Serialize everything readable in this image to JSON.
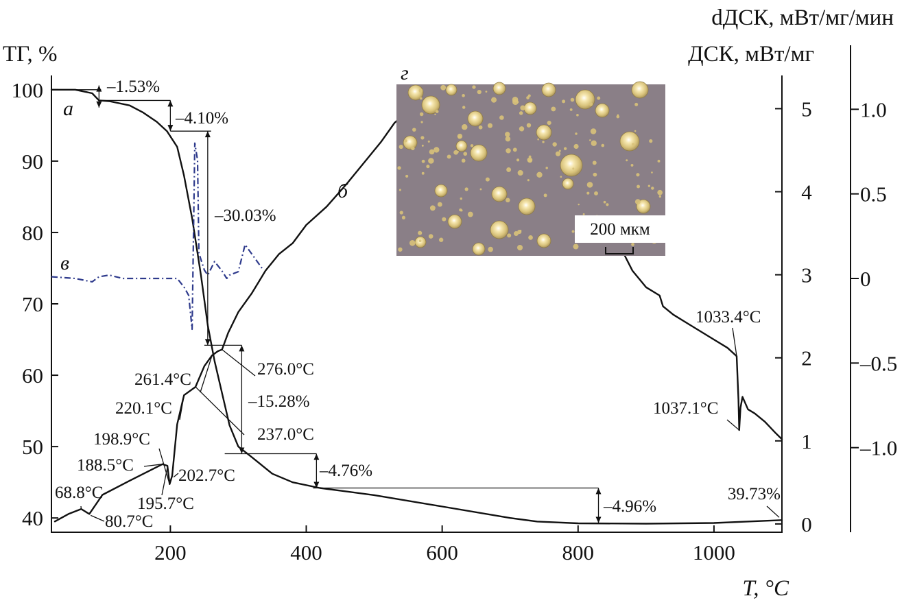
{
  "chart_data": {
    "type": "line",
    "xlabel": "T, °C",
    "xlim": [
      25,
      1100
    ],
    "x_ticks": [
      200,
      400,
      600,
      800,
      1000
    ],
    "y_left": {
      "label": "ТГ, %",
      "range": [
        38,
        102
      ],
      "ticks": [
        40,
        50,
        60,
        70,
        80,
        90,
        100
      ]
    },
    "y_right_inner": {
      "label": "ДСК, мВт/мг",
      "range": [
        -0.1,
        5.4
      ],
      "ticks": [
        0,
        1,
        2,
        3,
        4,
        5
      ]
    },
    "y_right_outer": {
      "label": "dДСК, мВт/мг/мин",
      "range": [
        -1.5,
        1.2
      ],
      "ticks": [
        "1.0",
        "0.5",
        "0",
        "–0.5",
        "–1.0"
      ],
      "tick_values": [
        1.0,
        0.5,
        0,
        -0.5,
        -1.0
      ]
    },
    "series": [
      {
        "name": "а",
        "axis": "left",
        "style": "solid",
        "x": [
          25,
          60,
          85,
          95,
          110,
          140,
          160,
          180,
          195,
          210,
          220,
          232,
          245,
          255,
          265,
          276,
          287,
          300,
          320,
          350,
          380,
          420,
          500,
          600,
          700,
          740,
          800,
          900,
          1000,
          1100
        ],
        "y": [
          100,
          100,
          99.5,
          98.5,
          98.4,
          97.8,
          96.8,
          95.5,
          94.2,
          92.0,
          88.0,
          82.0,
          74.0,
          67.0,
          62.0,
          57.5,
          53.0,
          50.0,
          48.5,
          46.2,
          45.0,
          44.2,
          43.2,
          41.6,
          40.0,
          39.5,
          39.25,
          39.2,
          39.3,
          39.7
        ]
      },
      {
        "name": "б",
        "axis": "right_inner",
        "style": "solid",
        "x": [
          30,
          50,
          68.8,
          80.7,
          100,
          140,
          188.5,
          195.7,
          198.9,
          202.7,
          210,
          220.1,
          237,
          250,
          261.4,
          270,
          276,
          285,
          300,
          320,
          340,
          360,
          380,
          400,
          430,
          460,
          490,
          510,
          530,
          540
        ],
        "y": [
          0.03,
          0.12,
          0.18,
          0.12,
          0.35,
          0.52,
          0.72,
          0.7,
          0.48,
          0.58,
          1.2,
          1.55,
          1.65,
          1.9,
          2.03,
          2.08,
          2.1,
          2.3,
          2.55,
          2.78,
          3.05,
          3.25,
          3.38,
          3.6,
          3.82,
          4.1,
          4.4,
          4.6,
          4.83,
          4.9
        ]
      },
      {
        "name": "б",
        "axis": "right_inner",
        "style": "solid",
        "x": [
          865,
          880,
          900,
          920,
          925,
          940,
          960,
          980,
          1000,
          1020,
          1033.4,
          1036,
          1037.1,
          1039,
          1042,
          1050,
          1060,
          1075,
          1090,
          1100
        ],
        "y": [
          3.29,
          3.05,
          2.85,
          2.75,
          2.62,
          2.52,
          2.42,
          2.32,
          2.22,
          2.12,
          2.02,
          1.5,
          1.13,
          1.4,
          1.53,
          1.38,
          1.33,
          1.23,
          1.1,
          1.02
        ]
      },
      {
        "name": "в",
        "axis": "right_outer",
        "style": "dashed",
        "color": "#2e3a8c",
        "x": [
          25,
          60,
          85,
          95,
          110,
          130,
          160,
          190,
          200,
          210,
          220,
          227,
          232,
          236,
          240,
          242,
          246,
          250,
          255,
          265,
          275,
          283,
          287,
          300,
          310,
          335
        ],
        "y": [
          0.01,
          0.0,
          -0.02,
          0.01,
          0.02,
          0.0,
          0.0,
          0.0,
          0.0,
          0.0,
          -0.05,
          -0.1,
          -0.3,
          0.8,
          0.7,
          0.15,
          0.1,
          0.05,
          0.02,
          0.1,
          0.05,
          0.0,
          0.02,
          0.04,
          0.2,
          0.06
        ]
      }
    ],
    "annotations": [
      {
        "text": "–1.53%",
        "x": 95,
        "series": "а"
      },
      {
        "text": "–4.10%",
        "x": 200,
        "series": "а"
      },
      {
        "text": "–30.03%",
        "x": 255,
        "series": "а"
      },
      {
        "text": "–15.28%",
        "x": 305,
        "series": "а"
      },
      {
        "text": "–4.76%",
        "x": 415,
        "series": "а"
      },
      {
        "text": "–4.96%",
        "x": 830,
        "series": "а"
      },
      {
        "text": "39.73%",
        "x": 1100,
        "series": "а"
      },
      {
        "text": "68.8°C",
        "x": 68.8,
        "series": "б"
      },
      {
        "text": "80.7°C",
        "x": 80.7,
        "series": "б"
      },
      {
        "text": "188.5°C",
        "x": 188.5,
        "series": "б"
      },
      {
        "text": "198.9°C",
        "x": 198.9,
        "series": "б"
      },
      {
        "text": "195.7°C",
        "x": 195.7,
        "series": "б"
      },
      {
        "text": "202.7°C",
        "x": 202.7,
        "series": "б"
      },
      {
        "text": "220.1°C",
        "x": 220.1,
        "series": "б"
      },
      {
        "text": "237.0°C",
        "x": 237,
        "series": "б"
      },
      {
        "text": "261.4°C",
        "x": 261.4,
        "series": "б"
      },
      {
        "text": "276.0°C",
        "x": 276,
        "series": "б"
      },
      {
        "text": "1033.4°C",
        "x": 1033.4,
        "series": "б"
      },
      {
        "text": "1037.1°C",
        "x": 1037.1,
        "series": "б"
      }
    ],
    "inset": {
      "letter": "г",
      "scale_label": "200 мкм",
      "background": "#8a7f87",
      "particle_color": "#d8c27a"
    },
    "grid": false,
    "legend": "none"
  }
}
